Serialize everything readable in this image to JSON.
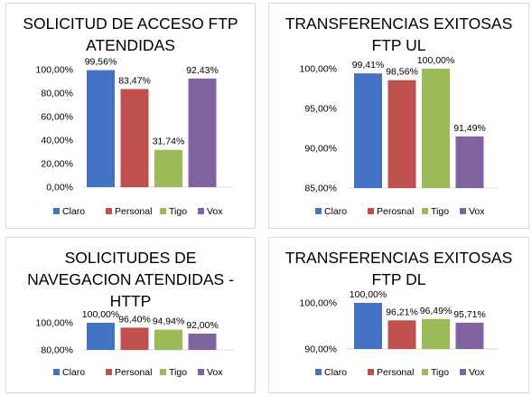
{
  "colors": {
    "Claro": "#4472c4",
    "Personal": "#c0504d",
    "Tigo": "#9bbb59",
    "Vox": "#8064a2"
  },
  "chart_data": [
    {
      "type": "bar",
      "title_lines": [
        "SOLICITUD DE ACCESO FTP",
        "ATENDIDAS"
      ],
      "categories": [
        "Claro",
        "Personal",
        "Tigo",
        "Vox"
      ],
      "values": [
        99.56,
        83.47,
        31.74,
        92.43
      ],
      "value_labels": [
        "99,56%",
        "83,47%",
        "31,74%",
        "92,43%"
      ],
      "ylim": [
        0,
        100
      ],
      "yticks": [
        "0,00%",
        "20,00%",
        "40,00%",
        "60,00%",
        "80,00%",
        "100,00%"
      ],
      "legend_position": "bottom",
      "grid": false
    },
    {
      "type": "bar",
      "title_lines": [
        "TRANSFERENCIAS EXITOSAS",
        "FTP UL"
      ],
      "categories": [
        "Claro",
        "Perosnal",
        "Tigo",
        "Vox"
      ],
      "values": [
        99.41,
        98.56,
        100.0,
        91.49
      ],
      "value_labels": [
        "99,41%",
        "98,56%",
        "100,00%",
        "91,49%"
      ],
      "ylim": [
        85,
        100
      ],
      "yticks": [
        "85,00%",
        "90,00%",
        "95,00%",
        "100,00%"
      ],
      "legend_position": "bottom",
      "grid": false
    },
    {
      "type": "bar",
      "title_lines": [
        "SOLICITUDES DE",
        "NAVEGACION ATENDIDAS -",
        "HTTP"
      ],
      "categories": [
        "Claro",
        "Personal",
        "Tigo",
        "Vox"
      ],
      "values": [
        100.0,
        96.4,
        94.94,
        92.0
      ],
      "value_labels": [
        "100,00%",
        "96,40%",
        "94,94%",
        "92,00%"
      ],
      "ylim": [
        80,
        100
      ],
      "yticks": [
        "80,00%",
        "100,00%"
      ],
      "legend_position": "bottom",
      "grid": false
    },
    {
      "type": "bar",
      "title_lines": [
        "TRANSFERENCIAS EXITOSAS",
        "FTP DL"
      ],
      "categories": [
        "Claro",
        "Personal",
        "Tigo",
        "Vox"
      ],
      "values": [
        100.0,
        96.21,
        96.49,
        95.71
      ],
      "value_labels": [
        "100,00%",
        "96,21%",
        "96,49%",
        "95,71%"
      ],
      "ylim": [
        90,
        100
      ],
      "yticks": [
        "90,00%",
        "100,00%"
      ],
      "legend_position": "bottom",
      "grid": false
    }
  ]
}
